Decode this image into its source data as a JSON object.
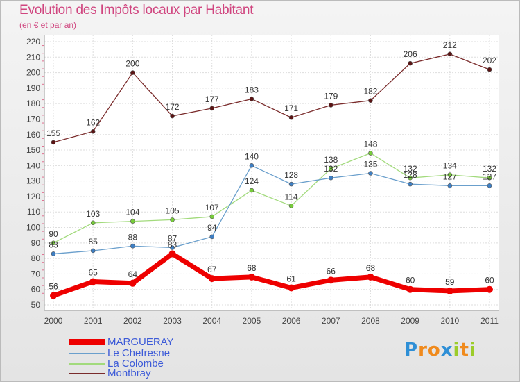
{
  "chart_data": {
    "type": "line",
    "title": "Evolution des Impôts locaux par Habitant",
    "subtitle": "(en € et par an)",
    "xlabel": "",
    "ylabel": "",
    "ylim": [
      50,
      220
    ],
    "yticks": [
      50,
      60,
      70,
      80,
      90,
      100,
      110,
      120,
      130,
      140,
      150,
      160,
      170,
      180,
      190,
      200,
      210,
      220
    ],
    "x": [
      "2000",
      "2001",
      "2002",
      "2003",
      "2004",
      "2005",
      "2006",
      "2007",
      "2008",
      "2009",
      "2010",
      "2011"
    ],
    "grid": true,
    "legend": "bottom-left",
    "series": [
      {
        "name": "MARGUERAY",
        "color": "#ee0000",
        "marker": "#ee0000",
        "values": [
          56,
          65,
          64,
          83,
          67,
          68,
          61,
          66,
          68,
          60,
          59,
          60
        ]
      },
      {
        "name": "Le Chefresne",
        "color": "#6a9fcc",
        "marker": "#3e7fc4",
        "values": [
          83,
          85,
          88,
          87,
          94,
          140,
          128,
          132,
          135,
          128,
          127,
          127
        ]
      },
      {
        "name": "La Colombe",
        "color": "#a2da7c",
        "marker": "#77cc3a",
        "values": [
          90,
          103,
          104,
          105,
          107,
          124,
          114,
          138,
          148,
          132,
          134,
          132
        ]
      },
      {
        "name": "Montbray",
        "color": "#7a2b2b",
        "marker": "#5a1414",
        "values": [
          155,
          162,
          200,
          172,
          177,
          183,
          171,
          179,
          182,
          206,
          212,
          202
        ]
      }
    ]
  },
  "logo": {
    "text": "Proxiti",
    "letters": [
      "P",
      "r",
      "o",
      "x",
      "i",
      "t",
      "i"
    ],
    "colors": [
      "#2e8fd6",
      "#f08a1c",
      "#f08a1c",
      "#2e8fd6",
      "#9ccc2a",
      "#f08a1c",
      "#9ccc2a"
    ]
  }
}
